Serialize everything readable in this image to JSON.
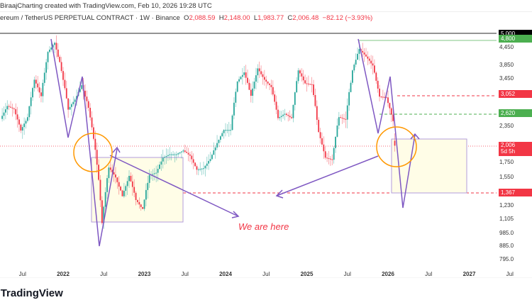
{
  "header": {
    "credit": "BiraajCharting created with TradingView.com, Feb 10, 2026 19:28 UTC",
    "symbol": "ereum / TetherUS PERPETUAL CONTRACT · 1W · Binance",
    "open_label": "O",
    "open": "2,088.59",
    "high_label": "H",
    "high": "2,148.00",
    "low_label": "L",
    "low": "1,983.77",
    "close_label": "C",
    "close": "2,006.48",
    "change": "−82.12 (−3.93%)"
  },
  "annotation": "We are here",
  "footer": {
    "logo": "TradingView"
  },
  "colors": {
    "up": "#26a69a",
    "down": "#f23645",
    "drawing": "#7e57c2",
    "circle": "#ff9800",
    "box_fill": "#fffde7"
  },
  "price_axis": {
    "labels": [
      "4,450",
      "3,850",
      "3,450",
      "2,350",
      "1,750",
      "1,550",
      "1,230",
      "1,105",
      "985.0",
      "885.0",
      "795.0"
    ],
    "tags": [
      {
        "text": "5,000",
        "color": "#000000",
        "price": 5000
      },
      {
        "text": "4,800",
        "color": "#4caf50",
        "price": 4800
      },
      {
        "text": "3,052",
        "color": "#f23645",
        "price": 3052
      },
      {
        "text": "2,620",
        "color": "#4caf50",
        "price": 2620
      },
      {
        "text": "2,006",
        "color": "#f23645",
        "price": 2006
      },
      {
        "text": "1,367",
        "color": "#f23645",
        "price": 1367
      }
    ],
    "countdown": "5d 5h"
  },
  "chart_data": {
    "type": "candlestick",
    "scale": "log",
    "ylim": [
      795,
      5000
    ],
    "x_ticks": [
      "Jul",
      "2022",
      "Jul",
      "2023",
      "Jul",
      "2024",
      "Jul",
      "2025",
      "Jul",
      "2026",
      "Jul",
      "2027",
      "Jul"
    ],
    "y_ticks": [
      4450,
      3850,
      3450,
      2350,
      1750,
      1550,
      1230,
      1105,
      985,
      885,
      795
    ],
    "monthly_close": {
      "months": [
        "2021-04",
        "2021-05",
        "2021-06",
        "2021-07",
        "2021-08",
        "2021-09",
        "2021-10",
        "2021-11",
        "2021-12",
        "2022-01",
        "2022-02",
        "2022-03",
        "2022-04",
        "2022-05",
        "2022-06",
        "2022-07",
        "2022-08",
        "2022-09",
        "2022-10",
        "2022-11",
        "2022-12",
        "2023-01",
        "2023-02",
        "2023-03",
        "2023-04",
        "2023-05",
        "2023-06",
        "2023-07",
        "2023-08",
        "2023-09",
        "2023-10",
        "2023-11",
        "2023-12",
        "2024-01",
        "2024-02",
        "2024-03",
        "2024-04",
        "2024-05",
        "2024-06",
        "2024-07",
        "2024-08",
        "2024-09",
        "2024-10",
        "2024-11",
        "2024-12",
        "2025-01",
        "2025-02",
        "2025-03",
        "2025-04",
        "2025-05",
        "2025-06",
        "2025-07",
        "2025-08",
        "2025-09",
        "2025-10",
        "2025-11",
        "2025-12",
        "2026-01",
        "2026-02"
      ],
      "values": [
        2770,
        2700,
        2270,
        2530,
        3430,
        3000,
        4300,
        4630,
        3680,
        2690,
        2920,
        3280,
        2730,
        1940,
        1070,
        1680,
        1550,
        1330,
        1570,
        1290,
        1200,
        1580,
        1610,
        1820,
        1870,
        1870,
        1930,
        1850,
        1650,
        1670,
        1800,
        2050,
        2280,
        2280,
        3380,
        3640,
        3010,
        3760,
        3430,
        3230,
        2510,
        2600,
        2510,
        3700,
        3330,
        3300,
        2240,
        1820,
        1790,
        2530,
        2480,
        3700,
        4400,
        4140,
        3850,
        2990,
        2970,
        2450,
        2006
      ]
    },
    "last": {
      "open": 2088.59,
      "high": 2148.0,
      "low": 1983.77,
      "close": 2006.48
    }
  }
}
